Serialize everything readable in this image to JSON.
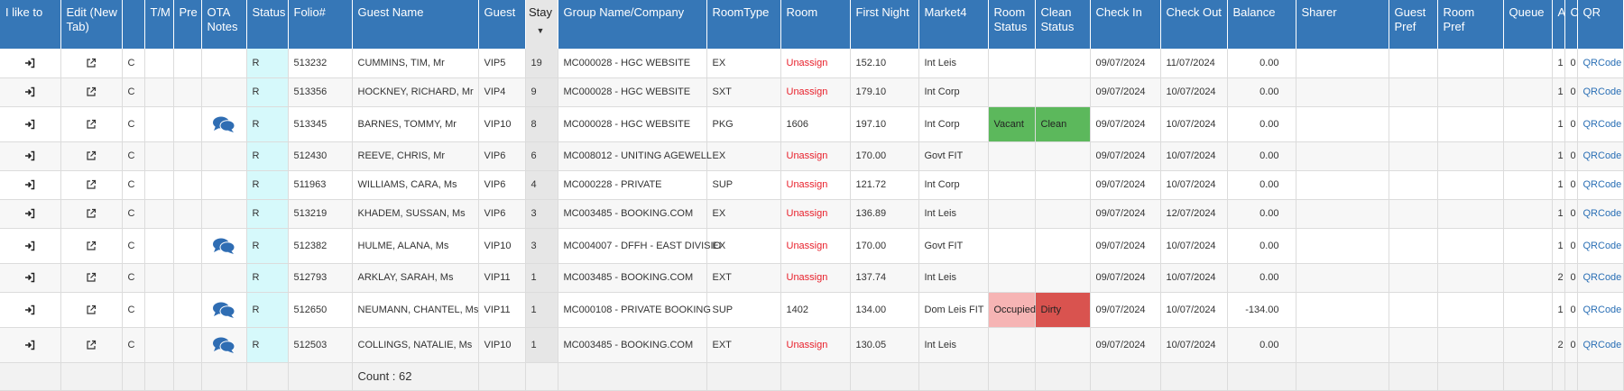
{
  "headers": [
    {
      "key": "ilike",
      "label": "I like to"
    },
    {
      "key": "edit",
      "label": "Edit (New Tab)"
    },
    {
      "key": "c",
      "label": ""
    },
    {
      "key": "tm",
      "label": "T/M"
    },
    {
      "key": "pre",
      "label": "Pre"
    },
    {
      "key": "ota",
      "label": "OTA Notes"
    },
    {
      "key": "status",
      "label": "Status"
    },
    {
      "key": "folio",
      "label": "Folio#"
    },
    {
      "key": "guest_name",
      "label": "Guest Name"
    },
    {
      "key": "guest",
      "label": "Guest"
    },
    {
      "key": "stay",
      "label": "Stay"
    },
    {
      "key": "group",
      "label": "Group Name/Company"
    },
    {
      "key": "roomtype",
      "label": "RoomType"
    },
    {
      "key": "room",
      "label": "Room"
    },
    {
      "key": "first_night",
      "label": "First Night"
    },
    {
      "key": "market",
      "label": "Market4"
    },
    {
      "key": "room_status",
      "label": "Room Status"
    },
    {
      "key": "clean_status",
      "label": "Clean Status"
    },
    {
      "key": "checkin",
      "label": "Check In"
    },
    {
      "key": "checkout",
      "label": "Check Out"
    },
    {
      "key": "balance",
      "label": "Balance"
    },
    {
      "key": "sharer",
      "label": "Sharer"
    },
    {
      "key": "guest_pref",
      "label": "Guest Pref"
    },
    {
      "key": "room_pref",
      "label": "Room Pref"
    },
    {
      "key": "queue",
      "label": "Queue"
    },
    {
      "key": "a",
      "label": "A"
    },
    {
      "key": "c2",
      "label": "C"
    },
    {
      "key": "qr",
      "label": "QR"
    }
  ],
  "sort_indicator": "▼",
  "rows": [
    {
      "c": "C",
      "ota": false,
      "status": "R",
      "folio": "513232",
      "guest_name": "CUMMINS, TIM, Mr",
      "guest": "VIP5",
      "stay": "19",
      "group": "MC000028 - HGC WEBSITE",
      "roomtype": "EX",
      "room": "Unassign",
      "first_night": "152.10",
      "market": "Int Leis",
      "room_status": "",
      "clean_status": "",
      "checkin": "09/07/2024",
      "checkout": "11/07/2024",
      "balance": "0.00",
      "a": "1",
      "c2": "0",
      "qr": "QRCode"
    },
    {
      "c": "C",
      "ota": false,
      "status": "R",
      "folio": "513356",
      "guest_name": "HOCKNEY, RICHARD, Mr",
      "guest": "VIP4",
      "stay": "9",
      "group": "MC000028 - HGC WEBSITE",
      "roomtype": "SXT",
      "room": "Unassign",
      "first_night": "179.10",
      "market": "Int Corp",
      "room_status": "",
      "clean_status": "",
      "checkin": "09/07/2024",
      "checkout": "10/07/2024",
      "balance": "0.00",
      "a": "1",
      "c2": "0",
      "qr": "QRCode"
    },
    {
      "c": "C",
      "ota": true,
      "status": "R",
      "folio": "513345",
      "guest_name": "BARNES, TOMMY, Mr",
      "guest": "VIP10",
      "stay": "8",
      "group": "MC000028 - HGC WEBSITE",
      "roomtype": "PKG",
      "room": "1606",
      "first_night": "197.10",
      "market": "Int Corp",
      "room_status": "Vacant",
      "clean_status": "Clean",
      "checkin": "09/07/2024",
      "checkout": "10/07/2024",
      "balance": "0.00",
      "a": "1",
      "c2": "0",
      "qr": "QRCode"
    },
    {
      "c": "C",
      "ota": false,
      "status": "R",
      "folio": "512430",
      "guest_name": "REEVE, CHRIS, Mr",
      "guest": "VIP6",
      "stay": "6",
      "group": "MC008012 - UNITING AGEWELL",
      "roomtype": "EX",
      "room": "Unassign",
      "first_night": "170.00",
      "market": "Govt FIT",
      "room_status": "",
      "clean_status": "",
      "checkin": "09/07/2024",
      "checkout": "10/07/2024",
      "balance": "0.00",
      "a": "1",
      "c2": "0",
      "qr": "QRCode"
    },
    {
      "c": "C",
      "ota": false,
      "status": "R",
      "folio": "511963",
      "guest_name": "WILLIAMS, CARA, Ms",
      "guest": "VIP6",
      "stay": "4",
      "group": "MC000228 - PRIVATE",
      "roomtype": "SUP",
      "room": "Unassign",
      "first_night": "121.72",
      "market": "Int Corp",
      "room_status": "",
      "clean_status": "",
      "checkin": "09/07/2024",
      "checkout": "10/07/2024",
      "balance": "0.00",
      "a": "1",
      "c2": "0",
      "qr": "QRCode"
    },
    {
      "c": "C",
      "ota": false,
      "status": "R",
      "folio": "513219",
      "guest_name": "KHADEM, SUSSAN, Ms",
      "guest": "VIP6",
      "stay": "3",
      "group": "MC003485 - BOOKING.COM",
      "roomtype": "EX",
      "room": "Unassign",
      "first_night": "136.89",
      "market": "Int Leis",
      "room_status": "",
      "clean_status": "",
      "checkin": "09/07/2024",
      "checkout": "12/07/2024",
      "balance": "0.00",
      "a": "1",
      "c2": "0",
      "qr": "QRCode"
    },
    {
      "c": "C",
      "ota": true,
      "status": "R",
      "folio": "512382",
      "guest_name": "HULME, ALANA, Ms",
      "guest": "VIP10",
      "stay": "3",
      "group": "MC004007 - DFFH - EAST DIVISIO",
      "roomtype": "EX",
      "room": "Unassign",
      "first_night": "170.00",
      "market": "Govt FIT",
      "room_status": "",
      "clean_status": "",
      "checkin": "09/07/2024",
      "checkout": "10/07/2024",
      "balance": "0.00",
      "a": "1",
      "c2": "0",
      "qr": "QRCode"
    },
    {
      "c": "C",
      "ota": false,
      "status": "R",
      "folio": "512793",
      "guest_name": "ARKLAY, SARAH, Ms",
      "guest": "VIP11",
      "stay": "1",
      "group": "MC003485 - BOOKING.COM",
      "roomtype": "EXT",
      "room": "Unassign",
      "first_night": "137.74",
      "market": "Int Leis",
      "room_status": "",
      "clean_status": "",
      "checkin": "09/07/2024",
      "checkout": "10/07/2024",
      "balance": "0.00",
      "a": "2",
      "c2": "0",
      "qr": "QRCode"
    },
    {
      "c": "C",
      "ota": true,
      "status": "R",
      "folio": "512650",
      "guest_name": "NEUMANN, CHANTEL, Ms",
      "guest": "VIP11",
      "stay": "1",
      "group": "MC000108 - PRIVATE BOOKING",
      "roomtype": "SUP",
      "room": "1402",
      "first_night": "134.00",
      "market": "Dom Leis FIT",
      "room_status": "Occupied",
      "clean_status": "Dirty",
      "checkin": "09/07/2024",
      "checkout": "10/07/2024",
      "balance": "-134.00",
      "a": "1",
      "c2": "0",
      "qr": "QRCode"
    },
    {
      "c": "C",
      "ota": true,
      "status": "R",
      "folio": "512503",
      "guest_name": "COLLINGS, NATALIE, Ms",
      "guest": "VIP10",
      "stay": "1",
      "group": "MC003485 - BOOKING.COM",
      "roomtype": "EXT",
      "room": "Unassign",
      "first_night": "130.05",
      "market": "Int Leis",
      "room_status": "",
      "clean_status": "",
      "checkin": "09/07/2024",
      "checkout": "10/07/2024",
      "balance": "0.00",
      "a": "2",
      "c2": "0",
      "qr": "QRCode"
    }
  ],
  "footer": {
    "count_label": "Count : 62"
  },
  "colors": {
    "header": "#3677b7",
    "status_cell": "#d6f9fb",
    "unassign": "#e8202b",
    "vacant": "#5cb85c",
    "dirty": "#d9534f",
    "occupied": "#f6b4b4"
  },
  "icons": {
    "action": "sign-in-icon",
    "edit": "external-link-icon",
    "ota": "chat-bubbles-icon"
  }
}
